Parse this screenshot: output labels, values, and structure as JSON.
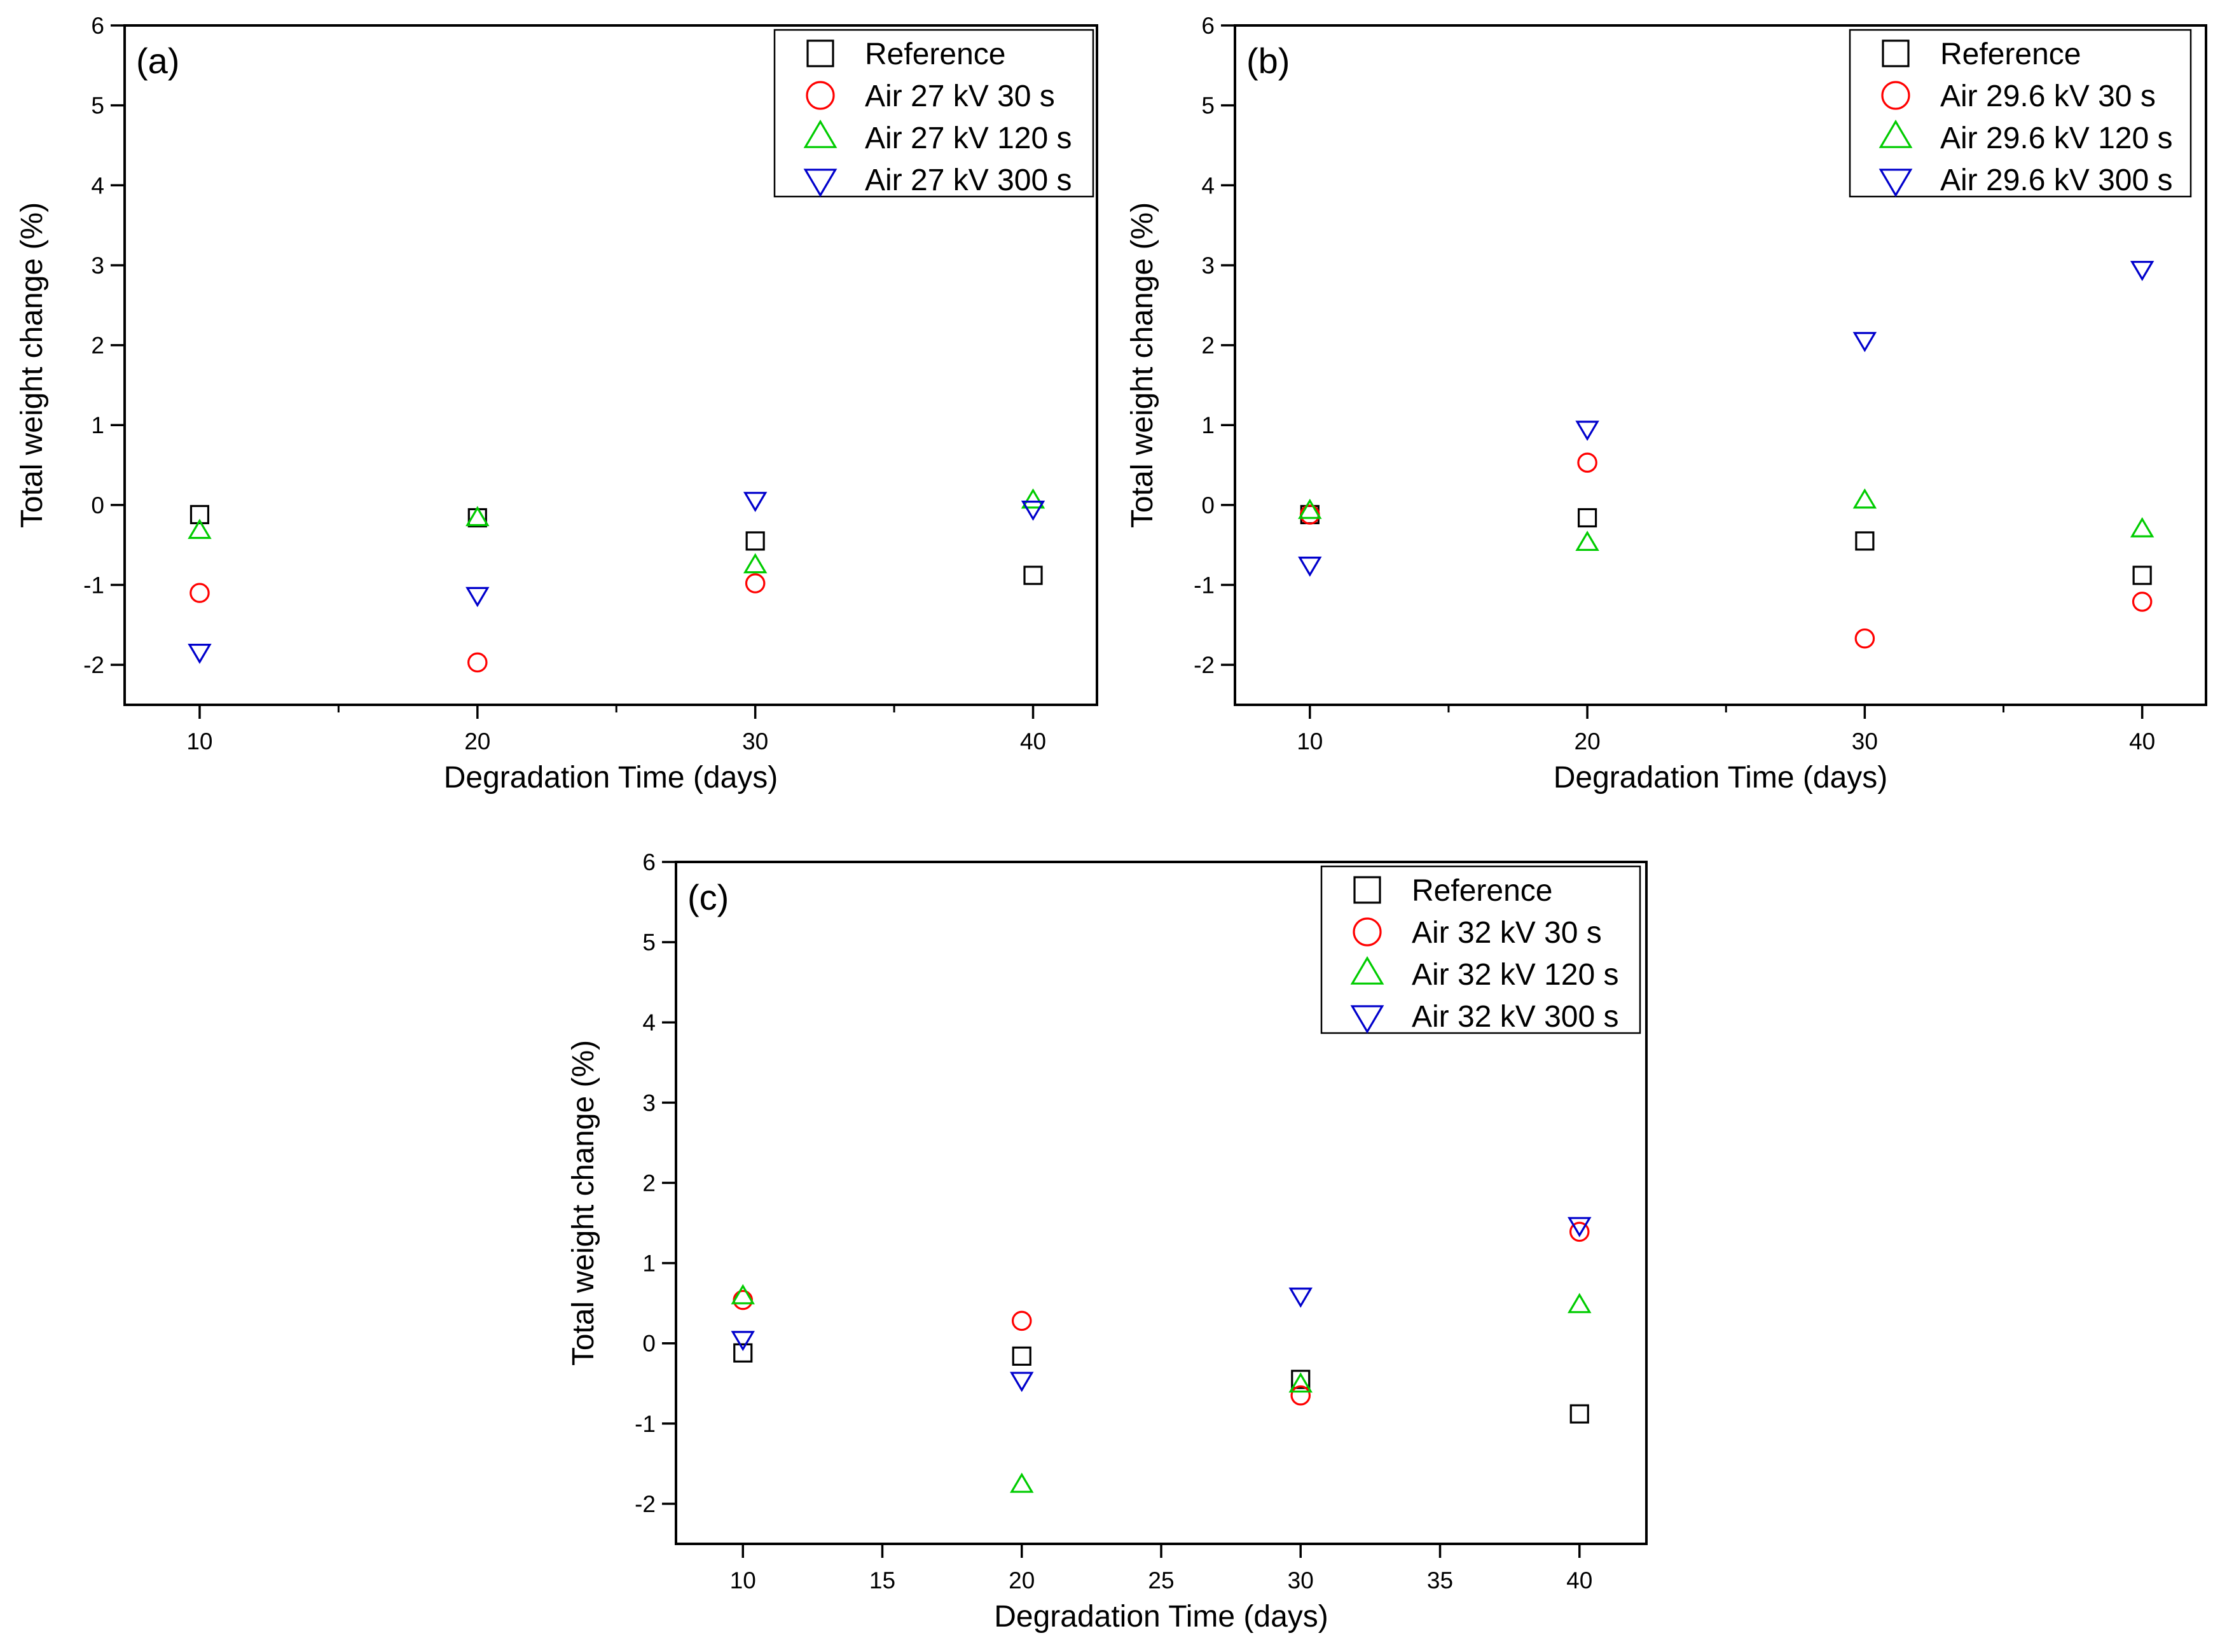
{
  "chart_data": [
    {
      "type": "scatter",
      "panel_label": "(a)",
      "xlabel": "Degradation Time (days)",
      "ylabel": "Total weight change (%)",
      "xlim": [
        7.3,
        42.3
      ],
      "ylim": [
        -2.5,
        6
      ],
      "xticks": [
        10,
        20,
        30,
        40
      ],
      "xticks_minor": [
        15,
        25,
        35
      ],
      "yticks": [
        -2,
        -1,
        0,
        1,
        2,
        3,
        4,
        5,
        6
      ],
      "legend_position": "top-right",
      "grid": false,
      "series": [
        {
          "name": "Reference",
          "marker": "square",
          "color": "#000000",
          "x": [
            10,
            20,
            30,
            40
          ],
          "y": [
            -0.12,
            -0.16,
            -0.45,
            -0.88
          ]
        },
        {
          "name": "Air 27 kV 30 s",
          "marker": "circle",
          "color": "#ff0000",
          "x": [
            10,
            20,
            30
          ],
          "y": [
            -1.1,
            -1.97,
            -0.98
          ]
        },
        {
          "name": "Air 27 kV 120 s",
          "marker": "triangle-up",
          "color": "#00cc00",
          "x": [
            10,
            20,
            30,
            40
          ],
          "y": [
            -0.33,
            -0.17,
            -0.76,
            0.05
          ]
        },
        {
          "name": "Air 27 kV 300 s",
          "marker": "triangle-down",
          "color": "#0000cc",
          "x": [
            10,
            20,
            30,
            40
          ],
          "y": [
            -1.83,
            -1.12,
            0.07,
            -0.04
          ]
        }
      ]
    },
    {
      "type": "scatter",
      "panel_label": "(b)",
      "xlabel": "Degradation Time (days)",
      "ylabel": "Total weight change (%)",
      "xlim": [
        7.3,
        42.3
      ],
      "ylim": [
        -2.5,
        6
      ],
      "xticks": [
        10,
        20,
        30,
        40
      ],
      "xticks_minor": [
        15,
        25,
        35
      ],
      "yticks": [
        -2,
        -1,
        0,
        1,
        2,
        3,
        4,
        5,
        6
      ],
      "legend_position": "top-right",
      "grid": false,
      "series": [
        {
          "name": "Reference",
          "marker": "square",
          "color": "#000000",
          "x": [
            10,
            20,
            30,
            40
          ],
          "y": [
            -0.12,
            -0.16,
            -0.45,
            -0.88
          ]
        },
        {
          "name": "Air 29.6 kV 30 s",
          "marker": "circle",
          "color": "#ff0000",
          "x": [
            10,
            20,
            30,
            40
          ],
          "y": [
            -0.12,
            0.53,
            -1.67,
            -1.21
          ]
        },
        {
          "name": "Air 29.6 kV 120 s",
          "marker": "triangle-up",
          "color": "#00cc00",
          "x": [
            10,
            20,
            30,
            40
          ],
          "y": [
            -0.08,
            -0.48,
            0.05,
            -0.31
          ]
        },
        {
          "name": "Air 29.6 kV 300 s",
          "marker": "triangle-down",
          "color": "#0000cc",
          "x": [
            10,
            20,
            30,
            40
          ],
          "y": [
            -0.74,
            0.96,
            2.07,
            2.96
          ]
        }
      ]
    },
    {
      "type": "scatter",
      "panel_label": "(c)",
      "xlabel": "Degradation Time (days)",
      "ylabel": "Total weight change (%)",
      "xlim": [
        7.6,
        42.4
      ],
      "ylim": [
        -2.5,
        6
      ],
      "xticks": [
        10,
        15,
        20,
        25,
        30,
        35,
        40
      ],
      "xticks_minor": [],
      "yticks": [
        -2,
        -1,
        0,
        1,
        2,
        3,
        4,
        5,
        6
      ],
      "legend_position": "top-right",
      "grid": false,
      "series": [
        {
          "name": "Reference",
          "marker": "square",
          "color": "#000000",
          "x": [
            10,
            20,
            30,
            40
          ],
          "y": [
            -0.12,
            -0.16,
            -0.45,
            -0.88
          ]
        },
        {
          "name": "Air 32 kV 30 s",
          "marker": "circle",
          "color": "#ff0000",
          "x": [
            10,
            20,
            30,
            40
          ],
          "y": [
            0.54,
            0.28,
            -0.65,
            1.39
          ]
        },
        {
          "name": "Air 32 kV 120 s",
          "marker": "triangle-up",
          "color": "#00cc00",
          "x": [
            10,
            20,
            30,
            40
          ],
          "y": [
            0.58,
            -1.77,
            -0.52,
            0.47
          ]
        },
        {
          "name": "Air 32 kV 300 s",
          "marker": "triangle-down",
          "color": "#0000cc",
          "x": [
            10,
            20,
            30,
            40
          ],
          "y": [
            0.06,
            -0.45,
            0.6,
            1.48
          ]
        }
      ]
    }
  ]
}
